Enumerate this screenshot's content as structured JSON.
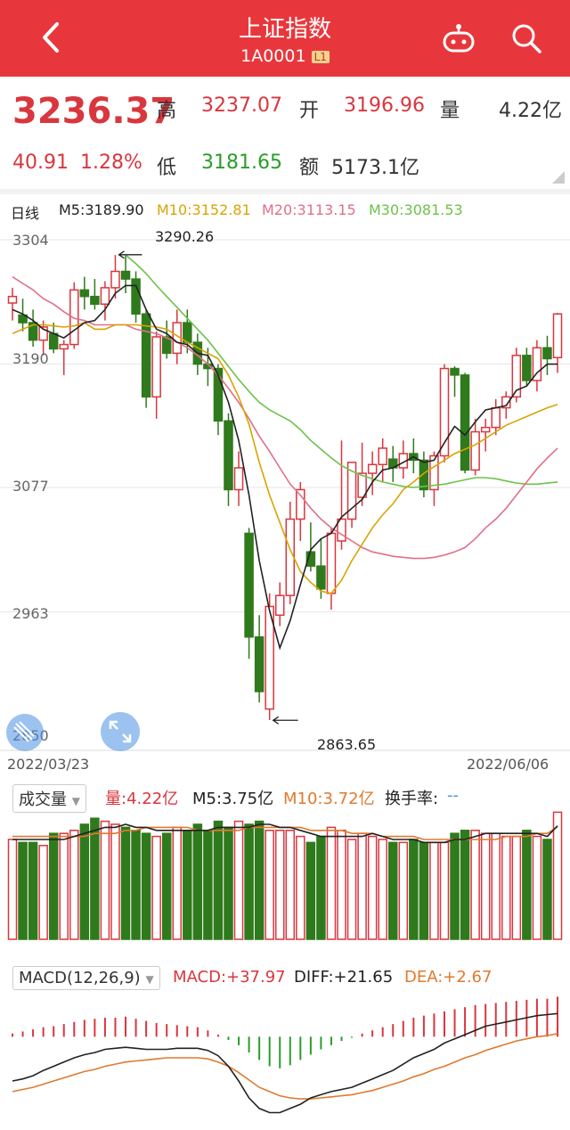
{
  "header": {
    "title": "上证指数",
    "code": "1A0001",
    "level": "L1"
  },
  "quote": {
    "price": "3236.37",
    "change": "40.91",
    "change_pct": "1.28%",
    "high_label": "高",
    "high": "3237.07",
    "open_label": "开",
    "open": "3196.96",
    "volume_label": "量",
    "volume": "4.22亿",
    "low_label": "低",
    "low": "3181.65",
    "amount_label": "额",
    "amount": "5173.1亿"
  },
  "kline": {
    "period": "日线",
    "ma": [
      {
        "label": "M5:3189.90",
        "color": "#222222"
      },
      {
        "label": "M10:3152.81",
        "color": "#d9a400"
      },
      {
        "label": "M20:3113.15",
        "color": "#e0708a"
      },
      {
        "label": "M30:3081.53",
        "color": "#6cc24a"
      }
    ],
    "y_ticks": [
      "3304",
      "3190",
      "3077",
      "2963",
      "2850"
    ],
    "high_annot": "3290.26",
    "low_annot": "2863.65",
    "date_start": "2022/03/23",
    "date_end": "2022/06/06"
  },
  "volume_panel": {
    "selector": "成交量",
    "vol": "量:4.22亿",
    "m5": "M5:3.75亿",
    "m10": "M10:3.72亿",
    "turnover_label": "换手率:",
    "turnover_value": "--"
  },
  "macd_panel": {
    "selector": "MACD(12,26,9)",
    "macd": "MACD:+37.97",
    "diff": "DIFF:+21.65",
    "dea": "DEA:+2.67"
  },
  "colors": {
    "up": "#d9363e",
    "down": "#2f7a1c",
    "header": "#e8373c"
  },
  "chart_data": {
    "type": "candlestick",
    "candles_ohl_c": [
      [
        3246,
        3260,
        3230,
        3252
      ],
      [
        3235,
        3250,
        3220,
        3228
      ],
      [
        3228,
        3240,
        3206,
        3212
      ],
      [
        3212,
        3230,
        3198,
        3224
      ],
      [
        3218,
        3228,
        3200,
        3204
      ],
      [
        3204,
        3212,
        3180,
        3208
      ],
      [
        3208,
        3265,
        3204,
        3258
      ],
      [
        3258,
        3270,
        3240,
        3252
      ],
      [
        3252,
        3268,
        3240,
        3245
      ],
      [
        3245,
        3266,
        3230,
        3260
      ],
      [
        3260,
        3290,
        3250,
        3275
      ],
      [
        3275,
        3290,
        3255,
        3268
      ],
      [
        3268,
        3275,
        3228,
        3236
      ],
      [
        3236,
        3240,
        3150,
        3160
      ],
      [
        3160,
        3220,
        3140,
        3215
      ],
      [
        3215,
        3230,
        3195,
        3200
      ],
      [
        3200,
        3240,
        3190,
        3228
      ],
      [
        3228,
        3240,
        3200,
        3210
      ],
      [
        3210,
        3218,
        3180,
        3190
      ],
      [
        3190,
        3205,
        3170,
        3186
      ],
      [
        3186,
        3190,
        3125,
        3138
      ],
      [
        3138,
        3145,
        3060,
        3075
      ],
      [
        3075,
        3110,
        3060,
        3095
      ],
      [
        3035,
        3040,
        2920,
        2940
      ],
      [
        2940,
        2960,
        2880,
        2890
      ],
      [
        2874,
        2980,
        2864,
        2968
      ],
      [
        2960,
        2990,
        2950,
        2978
      ],
      [
        2978,
        3064,
        2970,
        3048
      ],
      [
        3048,
        3082,
        3028,
        3075
      ],
      [
        3018,
        3045,
        3000,
        3005
      ],
      [
        3005,
        3030,
        2975,
        2984
      ],
      [
        2980,
        3040,
        2965,
        3035
      ],
      [
        3028,
        3120,
        3020,
        3048
      ],
      [
        3048,
        3090,
        3040,
        3100
      ],
      [
        3068,
        3118,
        3060,
        3090
      ],
      [
        3090,
        3110,
        3070,
        3098
      ],
      [
        3098,
        3122,
        3082,
        3113
      ],
      [
        3103,
        3115,
        3082,
        3095
      ],
      [
        3095,
        3120,
        3085,
        3108
      ],
      [
        3108,
        3122,
        3090,
        3102
      ],
      [
        3102,
        3110,
        3068,
        3075
      ],
      [
        3075,
        3110,
        3060,
        3106
      ],
      [
        3106,
        3190,
        3100,
        3186
      ],
      [
        3186,
        3188,
        3160,
        3180
      ],
      [
        3180,
        3182,
        3090,
        3093
      ],
      [
        3093,
        3140,
        3088,
        3128
      ],
      [
        3128,
        3140,
        3110,
        3132
      ],
      [
        3132,
        3158,
        3125,
        3150
      ],
      [
        3150,
        3165,
        3140,
        3160
      ],
      [
        3160,
        3205,
        3155,
        3198
      ],
      [
        3198,
        3205,
        3170,
        3175
      ],
      [
        3175,
        3212,
        3165,
        3205
      ],
      [
        3205,
        3216,
        3180,
        3195
      ],
      [
        3196,
        3237,
        3182,
        3236
      ]
    ],
    "ma5": [
      3240,
      3236,
      3230,
      3222,
      3218,
      3214,
      3221,
      3228,
      3230,
      3240,
      3255,
      3262,
      3262,
      3240,
      3222,
      3218,
      3210,
      3208,
      3200,
      3198,
      3180,
      3155,
      3120,
      3070,
      3010,
      2964,
      2930,
      2955,
      2988,
      3020,
      3030,
      3035,
      3050,
      3058,
      3066,
      3082,
      3093,
      3095,
      3100,
      3105,
      3100,
      3102,
      3118,
      3133,
      3125,
      3137,
      3148,
      3150,
      3152,
      3166,
      3170,
      3182,
      3190,
      3190
    ],
    "ma10": [
      3218,
      3222,
      3226,
      3226,
      3225,
      3224,
      3225,
      3228,
      3222,
      3222,
      3226,
      3226,
      3226,
      3225,
      3224,
      3222,
      3216,
      3210,
      3205,
      3200,
      3195,
      3180,
      3160,
      3135,
      3100,
      3070,
      3045,
      3020,
      3000,
      2990,
      2982,
      2980,
      2992,
      3010,
      3025,
      3040,
      3052,
      3062,
      3075,
      3082,
      3090,
      3096,
      3102,
      3108,
      3112,
      3116,
      3122,
      3128,
      3134,
      3138,
      3142,
      3146,
      3150,
      3153
    ],
    "ma20": [
      3270,
      3264,
      3258,
      3250,
      3245,
      3238,
      3232,
      3230,
      3226,
      3226,
      3226,
      3226,
      3222,
      3220,
      3218,
      3214,
      3210,
      3205,
      3198,
      3190,
      3180,
      3168,
      3155,
      3140,
      3124,
      3110,
      3095,
      3080,
      3070,
      3058,
      3048,
      3040,
      3034,
      3028,
      3022,
      3018,
      3016,
      3014,
      3013,
      3012,
      3012,
      3013,
      3015,
      3018,
      3022,
      3030,
      3040,
      3048,
      3058,
      3070,
      3082,
      3094,
      3104,
      3113
    ],
    "ma30_from_index": 11,
    "ma30": [
      3290,
      3282,
      3273,
      3262,
      3252,
      3242,
      3232,
      3222,
      3212,
      3200,
      3188,
      3176,
      3165,
      3155,
      3148,
      3143,
      3138,
      3130,
      3120,
      3112,
      3104,
      3097,
      3092,
      3088,
      3085,
      3082,
      3080,
      3078,
      3077,
      3078,
      3079,
      3080,
      3082,
      3084,
      3086,
      3086,
      3085,
      3083,
      3081,
      3080,
      3080,
      3081,
      3082
    ],
    "volumes": [
      3.3,
      3.2,
      3.2,
      3.1,
      3.5,
      3.5,
      3.6,
      3.8,
      4.0,
      3.9,
      3.8,
      3.7,
      3.6,
      3.5,
      3.4,
      3.5,
      3.7,
      3.6,
      3.8,
      3.6,
      3.9,
      3.7,
      3.9,
      3.8,
      3.9,
      3.6,
      3.6,
      3.6,
      3.4,
      3.2,
      3.4,
      3.7,
      3.6,
      3.3,
      3.5,
      3.4,
      3.3,
      3.2,
      3.2,
      3.3,
      3.2,
      3.2,
      3.2,
      3.5,
      3.6,
      3.6,
      3.5,
      3.5,
      3.4,
      3.4,
      3.6,
      3.4,
      3.3,
      4.2
    ],
    "vol_m5": [
      3.3,
      3.3,
      3.3,
      3.3,
      3.3,
      3.3,
      3.4,
      3.5,
      3.6,
      3.7,
      3.7,
      3.8,
      3.7,
      3.7,
      3.6,
      3.6,
      3.6,
      3.6,
      3.6,
      3.6,
      3.7,
      3.7,
      3.7,
      3.7,
      3.8,
      3.8,
      3.7,
      3.7,
      3.6,
      3.5,
      3.4,
      3.4,
      3.4,
      3.4,
      3.4,
      3.5,
      3.4,
      3.3,
      3.3,
      3.3,
      3.2,
      3.2,
      3.2,
      3.3,
      3.3,
      3.4,
      3.5,
      3.5,
      3.5,
      3.5,
      3.5,
      3.5,
      3.4,
      3.75
    ],
    "vol_m10": [
      3.4,
      3.4,
      3.4,
      3.4,
      3.4,
      3.4,
      3.4,
      3.4,
      3.5,
      3.5,
      3.5,
      3.6,
      3.6,
      3.7,
      3.7,
      3.7,
      3.7,
      3.7,
      3.6,
      3.6,
      3.6,
      3.6,
      3.6,
      3.7,
      3.7,
      3.7,
      3.7,
      3.7,
      3.7,
      3.6,
      3.6,
      3.6,
      3.6,
      3.5,
      3.5,
      3.5,
      3.4,
      3.4,
      3.4,
      3.4,
      3.3,
      3.3,
      3.3,
      3.3,
      3.3,
      3.3,
      3.3,
      3.3,
      3.4,
      3.4,
      3.4,
      3.5,
      3.5,
      3.72
    ],
    "macd_hist": [
      3,
      5,
      7,
      9,
      10,
      12,
      14,
      16,
      17,
      18,
      18,
      19,
      17,
      15,
      13,
      12,
      11,
      10,
      9,
      6,
      2,
      -3,
      -8,
      -15,
      -22,
      -28,
      -30,
      -27,
      -22,
      -17,
      -12,
      -8,
      -4,
      -1,
      3,
      6,
      9,
      12,
      15,
      18,
      20,
      22,
      24,
      26,
      28,
      30,
      31,
      32,
      33,
      34,
      35,
      36,
      36,
      38
    ],
    "macd_diff": [
      -42,
      -40,
      -37,
      -32,
      -28,
      -24,
      -20,
      -17,
      -15,
      -12,
      -11,
      -10,
      -11,
      -12,
      -12,
      -12,
      -11,
      -11,
      -11,
      -13,
      -18,
      -28,
      -42,
      -58,
      -68,
      -72,
      -72,
      -68,
      -64,
      -58,
      -55,
      -52,
      -50,
      -48,
      -44,
      -40,
      -36,
      -32,
      -26,
      -20,
      -16,
      -12,
      -6,
      -2,
      2,
      6,
      10,
      12,
      14,
      16,
      18,
      20,
      21,
      22
    ],
    "macd_dea": [
      -52,
      -50,
      -48,
      -45,
      -42,
      -39,
      -36,
      -33,
      -31,
      -28,
      -26,
      -24,
      -23,
      -22,
      -21,
      -20,
      -20,
      -20,
      -20,
      -21,
      -24,
      -28,
      -34,
      -41,
      -48,
      -52,
      -56,
      -58,
      -59,
      -59,
      -58,
      -57,
      -56,
      -55,
      -53,
      -51,
      -48,
      -45,
      -42,
      -38,
      -35,
      -31,
      -28,
      -24,
      -20,
      -17,
      -13,
      -10,
      -7,
      -4,
      -2,
      0,
      1,
      3
    ]
  }
}
